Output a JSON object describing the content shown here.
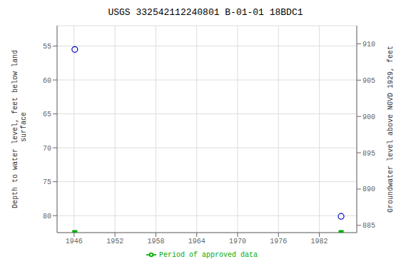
{
  "chart_data": {
    "type": "scatter",
    "title": "USGS 332542112240801 B-01-01 18BDC1",
    "ylabel": "Depth to water level, feet below land\n surface",
    "y2label": "Groundwater level above NGVD 1929, feet",
    "xlim": [
      1943.5,
      1987.5
    ],
    "xticks": [
      1946,
      1952,
      1958,
      1964,
      1970,
      1976,
      1982
    ],
    "ylim": [
      82.5,
      52.0
    ],
    "yticks": [
      55,
      60,
      65,
      70,
      75,
      80
    ],
    "y2lim": [
      884.0,
      912.5
    ],
    "y2ticks": [
      885,
      890,
      895,
      900,
      905,
      910
    ],
    "grid": true,
    "legend": "bottom",
    "series": [
      {
        "color": "#0000cc",
        "marker": "circle",
        "x": [
          1946.1,
          1985.2
        ],
        "values": [
          55.5,
          80.1
        ]
      },
      {
        "name": "Period of approved data",
        "color": "#00aa00",
        "marker": "square",
        "line_style": "solid",
        "x": [
          1946.1,
          1985.2
        ],
        "values": [
          82.5,
          82.5
        ]
      }
    ]
  }
}
